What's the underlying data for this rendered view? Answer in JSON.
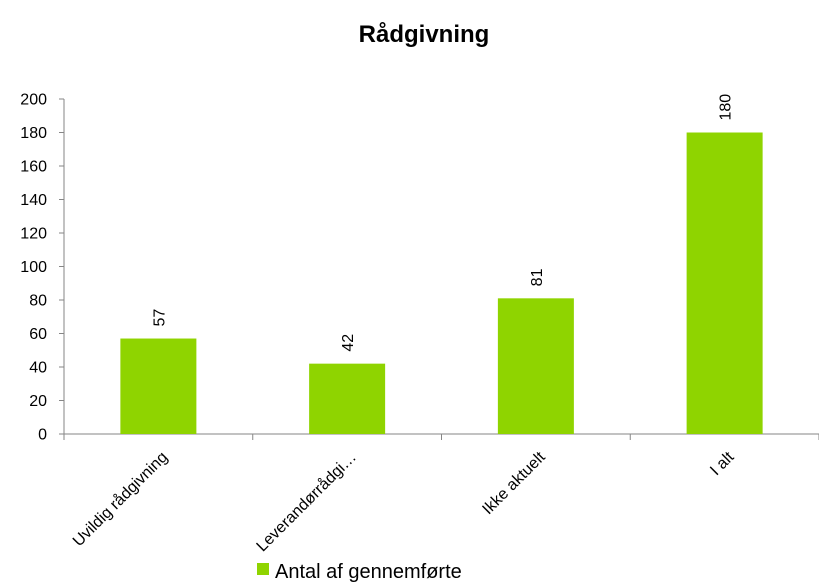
{
  "chart_data": {
    "type": "bar",
    "title": "Rådgivning",
    "categories": [
      "Uvildig rådgivning",
      "Leverandørrådgi…",
      "Ikke aktuelt",
      "I alt"
    ],
    "series": [
      {
        "name": "Antal af gennemførte",
        "values": [
          57,
          42,
          81,
          180
        ],
        "color": "#8fd400"
      }
    ],
    "data_labels": [
      "57",
      "42",
      "81",
      "180"
    ],
    "y_ticks": [
      "0",
      "20",
      "40",
      "60",
      "80",
      "100",
      "120",
      "140",
      "160",
      "180",
      "200"
    ],
    "ylim": [
      0,
      200
    ],
    "grid": false,
    "legend_position": "bottom"
  }
}
